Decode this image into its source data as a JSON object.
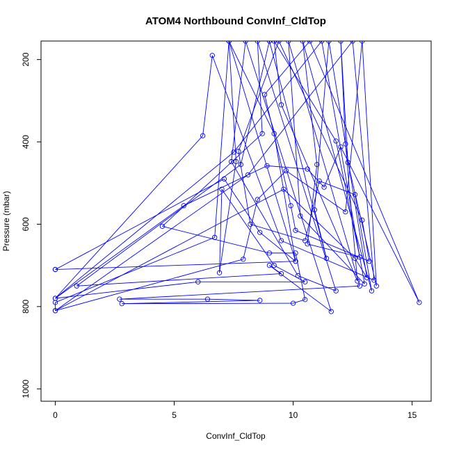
{
  "chart_data": {
    "type": "scatter",
    "title": "ATOM4 Northbound ConvInf_CldTop",
    "xlabel": "ConvInf_CldTop",
    "ylabel": "Pressure (mbar)",
    "xlim": [
      -0.6,
      15.8
    ],
    "ylim": [
      1030,
      155
    ],
    "y_reversed": true,
    "grid": false,
    "legend": "none",
    "xticks": [
      0,
      5,
      10,
      15
    ],
    "yticks": [
      200,
      400,
      600,
      800,
      1000
    ],
    "series_color": "#0000ff",
    "series": [
      {
        "style": "points-and-lines",
        "points": [
          [
            0.0,
            710
          ],
          [
            10.1,
            690
          ],
          [
            9.2,
            380
          ],
          [
            7.3,
            155
          ],
          [
            6.7,
            632
          ],
          [
            0.0,
            790
          ],
          [
            0.0,
            810
          ],
          [
            8.1,
            480
          ],
          [
            12.5,
            155
          ],
          [
            13.4,
            736
          ],
          [
            9.5,
            640
          ],
          [
            6.6,
            190
          ],
          [
            6.2,
            385
          ],
          [
            0.0,
            780
          ],
          [
            7.5,
            425
          ],
          [
            11.2,
            155
          ],
          [
            13.0,
            745
          ],
          [
            10.3,
            580
          ],
          [
            9.8,
            155
          ],
          [
            12.8,
            750
          ],
          [
            2.7,
            782
          ],
          [
            6.4,
            782
          ],
          [
            8.6,
            785
          ],
          [
            2.8,
            793
          ],
          [
            10.0,
            792
          ],
          [
            10.5,
            783
          ],
          [
            10.1,
            670
          ],
          [
            9.0,
            670
          ],
          [
            4.5,
            605
          ],
          [
            8.7,
            380
          ],
          [
            8.5,
            155
          ],
          [
            11.8,
            762
          ],
          [
            10.2,
            725
          ],
          [
            7.4,
            448
          ],
          [
            8.0,
            155
          ],
          [
            11.6,
            812
          ],
          [
            9.0,
            700
          ],
          [
            9.5,
            720
          ],
          [
            0.9,
            750
          ],
          [
            7.8,
            455
          ],
          [
            9.0,
            155
          ],
          [
            11.4,
            683
          ],
          [
            10.9,
            565
          ],
          [
            11.5,
            155
          ],
          [
            13.1,
            730
          ],
          [
            12.6,
            683
          ],
          [
            9.6,
            515
          ],
          [
            0.0,
            810
          ],
          [
            7.9,
            685
          ],
          [
            8.5,
            540
          ],
          [
            9.7,
            470
          ],
          [
            12.2,
            570
          ],
          [
            12.9,
            155
          ],
          [
            13.5,
            750
          ],
          [
            12.3,
            450
          ],
          [
            12.0,
            155
          ],
          [
            12.2,
            405
          ],
          [
            12.7,
            738
          ],
          [
            9.5,
            310
          ],
          [
            9.2,
            155
          ],
          [
            11.8,
            398
          ],
          [
            12.8,
            680
          ],
          [
            10.6,
            648
          ],
          [
            11.0,
            455
          ],
          [
            10.4,
            155
          ],
          [
            13.3,
            762
          ],
          [
            12.6,
            528
          ],
          [
            11.1,
            495
          ],
          [
            10.5,
            640
          ],
          [
            8.2,
            600
          ],
          [
            7.7,
            423
          ],
          [
            9.4,
            155
          ],
          [
            12.9,
            590
          ],
          [
            13.2,
            690
          ],
          [
            10.1,
            615
          ],
          [
            9.9,
            555
          ],
          [
            8.8,
            285
          ],
          [
            10.7,
            155
          ],
          [
            15.3,
            790
          ],
          [
            12.0,
            412
          ],
          [
            11.3,
            510
          ],
          [
            10.6,
            466
          ],
          [
            8.9,
            458
          ],
          [
            5.4,
            555
          ],
          [
            0.0,
            780
          ],
          [
            6.0,
            740
          ],
          [
            10.5,
            740
          ],
          [
            9.2,
            700
          ],
          [
            7.0,
            515
          ],
          [
            6.9,
            718
          ],
          [
            7.6,
            448
          ],
          [
            7.3,
            155
          ],
          [
            10.1,
            690
          ],
          [
            8.6,
            620
          ],
          [
            7.1,
            490
          ],
          [
            0.0,
            710
          ]
        ]
      }
    ]
  }
}
